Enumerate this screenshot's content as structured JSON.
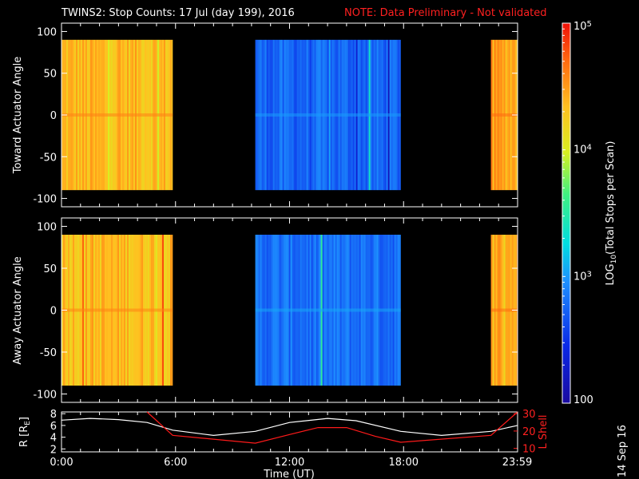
{
  "title": "TWINS2: Stop Counts: 17 Jul (day 199), 2016",
  "note": "NOTE: Data Preliminary - Not validated",
  "stamp": "14 Sep 16",
  "chart_data": [
    {
      "type": "heatmap",
      "name": "Toward Actuator Angle",
      "ylabel": "Toward Actuator Angle",
      "xlim": [
        0,
        24
      ],
      "ylim": [
        -110,
        110
      ],
      "yticks": [
        -100,
        -50,
        0,
        50,
        100
      ],
      "data_ylim": [
        -90,
        90
      ],
      "data_intervals_hours": [
        [
          0.0,
          5.85
        ],
        [
          10.2,
          17.85
        ],
        [
          22.6,
          24.0
        ]
      ],
      "log10_counts_levels": {
        "segment_1": 4.35,
        "segment_2": 2.75,
        "segment_3": 4.45
      }
    },
    {
      "type": "heatmap",
      "name": "Away Actuator Angle",
      "ylabel": "Away Actuator Angle",
      "xlim": [
        0,
        24
      ],
      "ylim": [
        -110,
        110
      ],
      "yticks": [
        -100,
        -50,
        0,
        50,
        100
      ],
      "data_ylim": [
        -90,
        90
      ],
      "data_intervals_hours": [
        [
          0.0,
          5.85
        ],
        [
          10.2,
          17.85
        ],
        [
          22.6,
          24.0
        ]
      ],
      "log10_counts_levels": {
        "segment_1": 4.35,
        "segment_2": 2.8,
        "segment_3": 4.45
      }
    },
    {
      "type": "line",
      "name": "orbit",
      "xlabel": "Time (UT)",
      "xticks": [
        0,
        6,
        12,
        18,
        23.98
      ],
      "xticklabels": [
        "0:00",
        "6:00",
        "12:00",
        "18:00",
        "23:59"
      ],
      "left_axis": {
        "label": "R [R",
        "label_sub": "E",
        "label_close": "]",
        "ylim": [
          1.5,
          8.3
        ],
        "ticks": [
          2,
          4,
          6,
          8
        ]
      },
      "right_axis": {
        "label": "L Shell",
        "ylim": [
          8,
          31
        ],
        "ticks": [
          10,
          20,
          30
        ]
      },
      "series": [
        {
          "name": "R [RE]",
          "color": "#ffffff",
          "x": [
            0,
            1.5,
            3,
            4.5,
            5.85,
            8,
            10.2,
            12,
            14,
            15.5,
            17.85,
            20,
            22.6,
            24
          ],
          "y": [
            6.9,
            7.2,
            7.0,
            6.5,
            5.2,
            4.3,
            5.0,
            6.5,
            7.2,
            6.8,
            5.0,
            4.3,
            5.0,
            6.0
          ]
        },
        {
          "name": "L Shell",
          "color": "#ff1a1a",
          "x": [
            4.5,
            5.85,
            10.2,
            12,
            13.5,
            15,
            16.5,
            17.85,
            22.6,
            24
          ],
          "y": [
            31,
            17.5,
            13,
            18,
            22,
            22,
            17,
            13.5,
            17.5,
            31
          ]
        }
      ]
    },
    {
      "type": "colorbar",
      "title": "LOG",
      "title_sub": "10",
      "title_rest": "(Total Stops per Scan)",
      "range": [
        100,
        100000
      ],
      "tick_labels": [
        {
          "base": "10",
          "exp": "5"
        },
        {
          "base": "10",
          "exp": "4"
        },
        {
          "base": "10",
          "exp": "3"
        },
        {
          "base": "100",
          "exp": ""
        }
      ]
    }
  ]
}
